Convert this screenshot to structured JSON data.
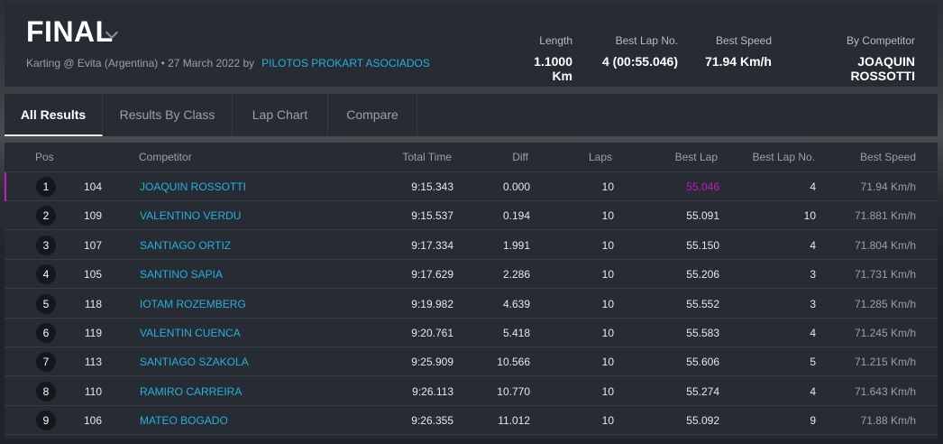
{
  "session": {
    "title": "FINAL",
    "subtitle": "Karting @ Evita (Argentina) • 27 March 2022 by",
    "organizer": "PILOTOS PROKART ASOCIADOS"
  },
  "stats": [
    {
      "label": "Length",
      "value": "1.1000 Km"
    },
    {
      "label": "Best Lap No.",
      "value": "4 (00:55.046)"
    },
    {
      "label": "Best Speed",
      "value": "71.94 Km/h"
    },
    {
      "label": "By Competitor",
      "value": "JOAQUIN ROSSOTTI"
    }
  ],
  "tabs": [
    "All Results",
    "Results By Class",
    "Lap Chart",
    "Compare"
  ],
  "columns": {
    "pos": "Pos",
    "competitor": "Competitor",
    "total": "Total Time",
    "diff": "Diff",
    "laps": "Laps",
    "best": "Best Lap",
    "bestno": "Best Lap No.",
    "speed": "Best Speed"
  },
  "rows": [
    {
      "pos": "1",
      "num": "104",
      "name": "JOAQUIN ROSSOTTI",
      "total": "9:15.343",
      "diff": "0.000",
      "laps": "10",
      "best": "55.046",
      "bestno": "4",
      "speed": "71.94 Km/h"
    },
    {
      "pos": "2",
      "num": "109",
      "name": "VALENTINO VERDU",
      "total": "9:15.537",
      "diff": "0.194",
      "laps": "10",
      "best": "55.091",
      "bestno": "10",
      "speed": "71.881 Km/h"
    },
    {
      "pos": "3",
      "num": "107",
      "name": "SANTIAGO ORTIZ",
      "total": "9:17.334",
      "diff": "1.991",
      "laps": "10",
      "best": "55.150",
      "bestno": "4",
      "speed": "71.804 Km/h"
    },
    {
      "pos": "4",
      "num": "105",
      "name": "SANTINO SAPIA",
      "total": "9:17.629",
      "diff": "2.286",
      "laps": "10",
      "best": "55.206",
      "bestno": "3",
      "speed": "71.731 Km/h"
    },
    {
      "pos": "5",
      "num": "118",
      "name": "IOTAM ROZEMBERG",
      "total": "9:19.982",
      "diff": "4.639",
      "laps": "10",
      "best": "55.552",
      "bestno": "3",
      "speed": "71.285 Km/h"
    },
    {
      "pos": "6",
      "num": "119",
      "name": "VALENTIN CUENCA",
      "total": "9:20.761",
      "diff": "5.418",
      "laps": "10",
      "best": "55.583",
      "bestno": "4",
      "speed": "71.245 Km/h"
    },
    {
      "pos": "7",
      "num": "113",
      "name": "SANTIAGO SZAKOLA",
      "total": "9:25.909",
      "diff": "10.566",
      "laps": "10",
      "best": "55.606",
      "bestno": "5",
      "speed": "71.215 Km/h"
    },
    {
      "pos": "8",
      "num": "110",
      "name": "RAMIRO CARREIRA",
      "total": "9:26.113",
      "diff": "10.770",
      "laps": "10",
      "best": "55.274",
      "bestno": "4",
      "speed": "71.643 Km/h"
    },
    {
      "pos": "9",
      "num": "106",
      "name": "MATEO BOGADO",
      "total": "9:26.355",
      "diff": "11.012",
      "laps": "10",
      "best": "55.092",
      "bestno": "9",
      "speed": "71.88 Km/h"
    }
  ],
  "colors": {
    "accent": "#2ab0d8",
    "highlight": "#c21bbf"
  }
}
